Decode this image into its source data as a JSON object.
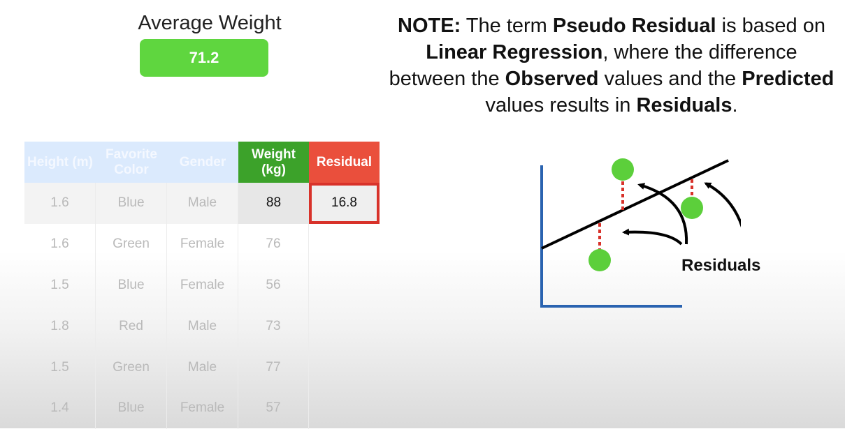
{
  "average": {
    "label": "Average Weight",
    "value": "71.2"
  },
  "note": {
    "lead": "NOTE:",
    "t1": " The term ",
    "term": "Pseudo Residual",
    "t2": " is based on ",
    "method": "Linear Regression",
    "t3": ", where the difference between the ",
    "observed": "Observed",
    "t4": " values and the ",
    "predicted": "Predicted",
    "t5": " values results in ",
    "residuals": "Residuals",
    "t6": "."
  },
  "table": {
    "headers": {
      "height": "Height (m)",
      "color": "Favorite Color",
      "gender": "Gender",
      "weight": "Weight (kg)",
      "residual": "Residual"
    },
    "rows": [
      {
        "height": "1.6",
        "color": "Blue",
        "gender": "Male",
        "weight": "88",
        "residual": "16.8"
      },
      {
        "height": "1.6",
        "color": "Green",
        "gender": "Female",
        "weight": "76",
        "residual": ""
      },
      {
        "height": "1.5",
        "color": "Blue",
        "gender": "Female",
        "weight": "56",
        "residual": ""
      },
      {
        "height": "1.8",
        "color": "Red",
        "gender": "Male",
        "weight": "73",
        "residual": ""
      },
      {
        "height": "1.5",
        "color": "Green",
        "gender": "Male",
        "weight": "77",
        "residual": ""
      },
      {
        "height": "1.4",
        "color": "Blue",
        "gender": "Female",
        "weight": "57",
        "residual": ""
      }
    ]
  },
  "diagram": {
    "label": "Residuals",
    "colors": {
      "axis": "#2a63b0",
      "line": "#000000",
      "point": "#5ccf3b",
      "residual": "#d8322a"
    }
  }
}
